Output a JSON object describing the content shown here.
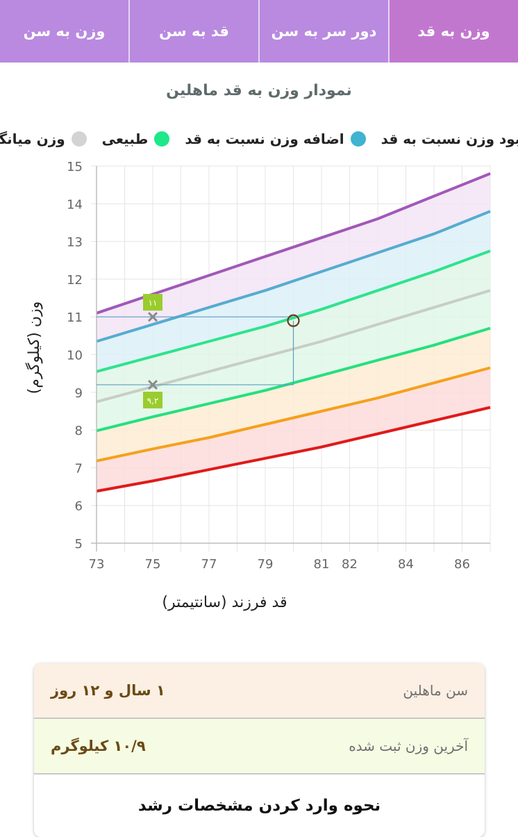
{
  "tabs": [
    {
      "label": "وزن به سن",
      "active": false
    },
    {
      "label": "قد به سن",
      "active": false
    },
    {
      "label": "دور سر به سن",
      "active": false
    },
    {
      "label": "وزن به قد",
      "active": true
    }
  ],
  "chart_title": "نمودار وزن به قد ماهلین",
  "legend": [
    {
      "label": "وزن میانگین",
      "color": "#d3d3d3"
    },
    {
      "label": "طبیعی",
      "color": "#1ee88a"
    },
    {
      "label": "اضافه وزن نسبت به قد",
      "color": "#3fb3d0"
    },
    {
      "label": "کمبود وزن نسبت به قد",
      "color": "#f5a614"
    }
  ],
  "chart_data": {
    "type": "area",
    "title": "نمودار وزن به قد ماهلین",
    "xlabel": "قد فرزند (سانتیمتر)",
    "ylabel": "وزن (کیلوگرم)",
    "xlim": [
      73,
      87
    ],
    "ylim": [
      5,
      15
    ],
    "x_ticks": [
      73,
      75,
      77,
      79,
      81,
      82,
      84,
      86
    ],
    "y_ticks": [
      5,
      6,
      7,
      8,
      9,
      10,
      11,
      12,
      13,
      14,
      15
    ],
    "grid": true,
    "x": [
      73,
      75,
      77,
      79,
      81,
      83,
      85,
      87
    ],
    "series": [
      {
        "color": "#a158b8",
        "values": [
          11.1,
          11.6,
          12.1,
          12.6,
          13.1,
          13.6,
          14.2,
          14.8
        ]
      },
      {
        "color": "#55acd0",
        "values": [
          10.35,
          10.8,
          11.25,
          11.7,
          12.2,
          12.7,
          13.2,
          13.8
        ]
      },
      {
        "color": "#2ee38e",
        "values": [
          9.55,
          9.95,
          10.35,
          10.75,
          11.2,
          11.7,
          12.2,
          12.75
        ]
      },
      {
        "color": "#c8cdc8",
        "values": [
          8.75,
          9.15,
          9.55,
          9.95,
          10.35,
          10.8,
          11.25,
          11.7
        ]
      },
      {
        "color": "#25e07e",
        "values": [
          7.98,
          8.35,
          8.7,
          9.05,
          9.45,
          9.85,
          10.25,
          10.7
        ]
      },
      {
        "color": "#f5a01c",
        "values": [
          7.18,
          7.5,
          7.8,
          8.15,
          8.5,
          8.85,
          9.25,
          9.65
        ]
      },
      {
        "color": "#e01a1a",
        "values": [
          6.38,
          6.65,
          6.95,
          7.25,
          7.55,
          7.9,
          8.25,
          8.6
        ]
      }
    ],
    "band_colors": [
      "#f3e4f6",
      "#dcf0f8",
      "#e0f6e6",
      "#dff8e8",
      "#fdecd4",
      "#fcdcda"
    ],
    "markers": [
      {
        "type": "cross",
        "x": 75,
        "y": 11,
        "label": "۱۱"
      },
      {
        "type": "cross",
        "x": 75,
        "y": 9.2,
        "label": "۹,۲"
      },
      {
        "type": "circle",
        "x": 80,
        "y": 10.9
      }
    ],
    "guide_lines": [
      {
        "from_x": 73,
        "to_x": 80,
        "y": 11
      },
      {
        "from_x": 73,
        "to_x": 80,
        "y": 9.2
      },
      {
        "x": 80,
        "from_y": 9.2,
        "to_y": 10.9
      }
    ]
  },
  "info": {
    "age_label": "سن ماهلین",
    "age_value": "۱ سال و ۱۲ روز",
    "weight_label": "آخرین وزن ثبت شده",
    "weight_value": "۱۰/۹ کیلوگرم",
    "guide_button": "نحوه وارد کردن مشخصات رشد"
  }
}
